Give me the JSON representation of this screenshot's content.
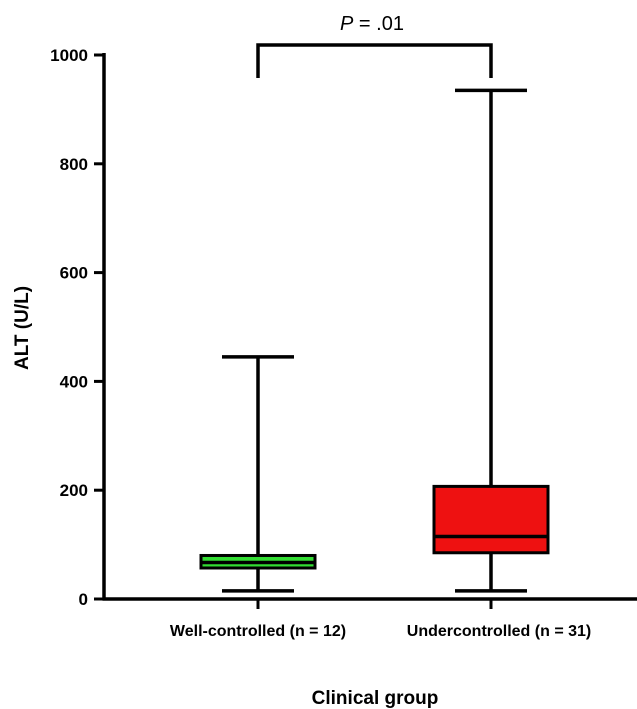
{
  "chart_data": {
    "type": "box",
    "ylabel": "ALT (U/L)",
    "xlabel": "Clinical group",
    "ylim": [
      0,
      1000
    ],
    "yticks": [
      0,
      200,
      400,
      600,
      800,
      1000
    ],
    "categories": [
      "Well-controlled (n = 12)",
      "Undercontrolled (n = 31)"
    ],
    "boxes": [
      {
        "category": "Well-controlled (n = 12)",
        "min": 15,
        "q1": 57,
        "median": 67,
        "q3": 80,
        "max": 445,
        "color": "#33dd33"
      },
      {
        "category": "Undercontrolled (n = 31)",
        "min": 15,
        "q1": 85,
        "median": 115,
        "q3": 207,
        "max": 935,
        "color": "#ee1111"
      }
    ],
    "annotation": {
      "p_symbol": "P",
      "p_rest": " = .01"
    }
  }
}
